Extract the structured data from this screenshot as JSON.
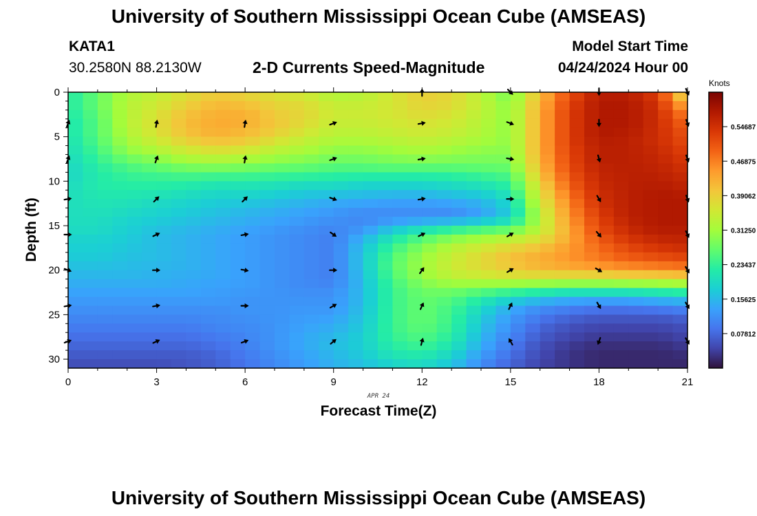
{
  "header": {
    "title": "University of Southern Mississippi Ocean Cube (AMSEAS)",
    "station_name": "KATA1",
    "station_coords": "30.2580N  88.2130W",
    "subtitle": "2-D Currents Speed-Magnitude",
    "model_start_label": "Model Start Time",
    "model_start_value": "04/24/2024 Hour 00"
  },
  "footer": {
    "title": "University of Southern Mississippi Ocean Cube (AMSEAS)"
  },
  "chart_data": {
    "type": "heatmap",
    "title": "2-D Currents Speed-Magnitude",
    "xlabel": "Forecast Time(Z)",
    "ylabel": "Depth (ft)",
    "x_note": "APR 24",
    "xlim": [
      0,
      21
    ],
    "ylim": [
      31,
      0
    ],
    "xticks": [
      0,
      3,
      6,
      9,
      12,
      15,
      18,
      21
    ],
    "yticks": [
      0,
      5,
      10,
      15,
      20,
      25,
      30
    ],
    "colorbar": {
      "units": "Knots",
      "range": [
        0.0,
        0.625
      ],
      "ticks": [
        "0.07812",
        "0.15625",
        "0.23437",
        "0.31250",
        "0.39062",
        "0.46875",
        "0.54687"
      ],
      "tick_values": [
        0.07812,
        0.15625,
        0.23437,
        0.3125,
        0.39062,
        0.46875,
        0.54687
      ],
      "colormap": [
        "#30123b",
        "#4145ab",
        "#4675ed",
        "#39a2fc",
        "#1bcfd4",
        "#24eca6",
        "#61fc6c",
        "#a4fc3b",
        "#d1e834",
        "#f3c63a",
        "#fe9b2d",
        "#f36315",
        "#d93806",
        "#b11901",
        "#7a0402"
      ]
    },
    "hours": [
      0,
      1,
      2,
      3,
      4,
      5,
      6,
      7,
      8,
      9,
      10,
      11,
      12,
      13,
      14,
      15,
      16,
      17,
      18,
      19,
      20,
      21
    ],
    "depths": [
      0,
      1,
      2,
      3,
      4,
      5,
      6,
      7,
      8,
      9,
      10,
      11,
      12,
      13,
      14,
      15,
      16,
      17,
      18,
      19,
      20,
      21,
      22,
      23,
      24,
      25,
      26,
      27,
      28,
      29,
      30,
      31
    ],
    "speed_knots": [
      [
        0.22,
        0.27,
        0.32,
        0.34,
        0.37,
        0.39,
        0.38,
        0.36,
        0.35,
        0.32,
        0.33,
        0.36,
        0.39,
        0.38,
        0.33,
        0.28,
        0.41,
        0.51,
        0.57,
        0.57,
        0.53,
        0.34
      ],
      [
        0.22,
        0.27,
        0.33,
        0.35,
        0.38,
        0.41,
        0.4,
        0.38,
        0.37,
        0.34,
        0.34,
        0.36,
        0.39,
        0.38,
        0.34,
        0.29,
        0.42,
        0.52,
        0.58,
        0.58,
        0.54,
        0.4
      ],
      [
        0.22,
        0.27,
        0.33,
        0.36,
        0.4,
        0.42,
        0.42,
        0.39,
        0.38,
        0.35,
        0.35,
        0.36,
        0.38,
        0.37,
        0.34,
        0.3,
        0.43,
        0.53,
        0.58,
        0.58,
        0.55,
        0.45
      ],
      [
        0.21,
        0.26,
        0.33,
        0.37,
        0.41,
        0.43,
        0.43,
        0.4,
        0.38,
        0.35,
        0.35,
        0.36,
        0.37,
        0.36,
        0.33,
        0.3,
        0.43,
        0.53,
        0.58,
        0.58,
        0.55,
        0.48
      ],
      [
        0.21,
        0.26,
        0.33,
        0.37,
        0.41,
        0.43,
        0.42,
        0.4,
        0.37,
        0.34,
        0.34,
        0.35,
        0.36,
        0.35,
        0.33,
        0.3,
        0.43,
        0.53,
        0.58,
        0.58,
        0.55,
        0.5
      ],
      [
        0.21,
        0.26,
        0.32,
        0.36,
        0.4,
        0.42,
        0.41,
        0.38,
        0.35,
        0.33,
        0.33,
        0.34,
        0.35,
        0.34,
        0.32,
        0.3,
        0.43,
        0.53,
        0.58,
        0.57,
        0.55,
        0.51
      ],
      [
        0.2,
        0.25,
        0.31,
        0.34,
        0.37,
        0.39,
        0.38,
        0.35,
        0.33,
        0.31,
        0.31,
        0.32,
        0.33,
        0.32,
        0.31,
        0.3,
        0.43,
        0.53,
        0.57,
        0.57,
        0.55,
        0.52
      ],
      [
        0.2,
        0.24,
        0.29,
        0.31,
        0.34,
        0.35,
        0.34,
        0.32,
        0.31,
        0.29,
        0.29,
        0.3,
        0.31,
        0.3,
        0.29,
        0.29,
        0.43,
        0.52,
        0.57,
        0.57,
        0.56,
        0.53
      ],
      [
        0.19,
        0.23,
        0.26,
        0.28,
        0.3,
        0.31,
        0.3,
        0.29,
        0.28,
        0.27,
        0.27,
        0.28,
        0.28,
        0.28,
        0.28,
        0.28,
        0.42,
        0.52,
        0.57,
        0.57,
        0.56,
        0.54
      ],
      [
        0.19,
        0.22,
        0.24,
        0.25,
        0.26,
        0.26,
        0.26,
        0.25,
        0.25,
        0.24,
        0.24,
        0.24,
        0.24,
        0.24,
        0.25,
        0.26,
        0.41,
        0.51,
        0.56,
        0.57,
        0.57,
        0.55
      ],
      [
        0.19,
        0.22,
        0.23,
        0.23,
        0.23,
        0.22,
        0.22,
        0.22,
        0.21,
        0.21,
        0.2,
        0.2,
        0.2,
        0.21,
        0.22,
        0.24,
        0.39,
        0.5,
        0.56,
        0.57,
        0.57,
        0.56
      ],
      [
        0.2,
        0.22,
        0.22,
        0.22,
        0.21,
        0.2,
        0.2,
        0.19,
        0.18,
        0.18,
        0.17,
        0.17,
        0.17,
        0.18,
        0.19,
        0.22,
        0.37,
        0.49,
        0.55,
        0.57,
        0.58,
        0.57
      ],
      [
        0.2,
        0.21,
        0.21,
        0.2,
        0.19,
        0.18,
        0.18,
        0.17,
        0.16,
        0.15,
        0.15,
        0.14,
        0.14,
        0.15,
        0.16,
        0.2,
        0.36,
        0.47,
        0.55,
        0.57,
        0.58,
        0.58
      ],
      [
        0.2,
        0.21,
        0.2,
        0.19,
        0.18,
        0.17,
        0.16,
        0.15,
        0.14,
        0.13,
        0.12,
        0.12,
        0.12,
        0.12,
        0.14,
        0.18,
        0.34,
        0.46,
        0.54,
        0.57,
        0.58,
        0.58
      ],
      [
        0.2,
        0.2,
        0.19,
        0.18,
        0.17,
        0.16,
        0.15,
        0.14,
        0.13,
        0.12,
        0.11,
        0.11,
        0.11,
        0.11,
        0.13,
        0.18,
        0.33,
        0.45,
        0.53,
        0.57,
        0.58,
        0.58
      ],
      [
        0.2,
        0.2,
        0.18,
        0.17,
        0.16,
        0.15,
        0.14,
        0.13,
        0.12,
        0.11,
        0.11,
        0.15,
        0.18,
        0.2,
        0.22,
        0.24,
        0.33,
        0.44,
        0.52,
        0.56,
        0.58,
        0.58
      ],
      [
        0.19,
        0.19,
        0.18,
        0.16,
        0.15,
        0.14,
        0.13,
        0.12,
        0.11,
        0.1,
        0.14,
        0.2,
        0.24,
        0.27,
        0.29,
        0.31,
        0.35,
        0.43,
        0.51,
        0.55,
        0.57,
        0.57
      ],
      [
        0.18,
        0.18,
        0.17,
        0.16,
        0.15,
        0.14,
        0.13,
        0.12,
        0.11,
        0.1,
        0.16,
        0.23,
        0.28,
        0.32,
        0.34,
        0.36,
        0.39,
        0.44,
        0.49,
        0.53,
        0.55,
        0.56
      ],
      [
        0.18,
        0.18,
        0.17,
        0.16,
        0.15,
        0.14,
        0.13,
        0.12,
        0.11,
        0.1,
        0.17,
        0.25,
        0.3,
        0.34,
        0.37,
        0.4,
        0.42,
        0.45,
        0.48,
        0.51,
        0.53,
        0.54
      ],
      [
        0.17,
        0.17,
        0.16,
        0.16,
        0.15,
        0.14,
        0.13,
        0.12,
        0.11,
        0.1,
        0.17,
        0.26,
        0.31,
        0.35,
        0.38,
        0.41,
        0.43,
        0.45,
        0.47,
        0.49,
        0.5,
        0.51
      ],
      [
        0.16,
        0.16,
        0.16,
        0.15,
        0.15,
        0.14,
        0.13,
        0.12,
        0.11,
        0.1,
        0.17,
        0.26,
        0.31,
        0.35,
        0.37,
        0.39,
        0.41,
        0.42,
        0.43,
        0.44,
        0.45,
        0.46
      ],
      [
        0.15,
        0.15,
        0.15,
        0.15,
        0.14,
        0.14,
        0.13,
        0.12,
        0.11,
        0.1,
        0.16,
        0.25,
        0.3,
        0.33,
        0.34,
        0.35,
        0.35,
        0.35,
        0.35,
        0.36,
        0.36,
        0.37
      ],
      [
        0.14,
        0.14,
        0.14,
        0.14,
        0.14,
        0.13,
        0.13,
        0.12,
        0.11,
        0.11,
        0.16,
        0.24,
        0.28,
        0.29,
        0.28,
        0.27,
        0.26,
        0.25,
        0.25,
        0.25,
        0.26,
        0.27
      ],
      [
        0.13,
        0.13,
        0.13,
        0.13,
        0.13,
        0.13,
        0.12,
        0.12,
        0.12,
        0.12,
        0.16,
        0.24,
        0.27,
        0.26,
        0.23,
        0.2,
        0.18,
        0.16,
        0.16,
        0.16,
        0.17,
        0.18
      ],
      [
        0.12,
        0.12,
        0.12,
        0.12,
        0.12,
        0.12,
        0.12,
        0.12,
        0.12,
        0.12,
        0.16,
        0.24,
        0.27,
        0.25,
        0.2,
        0.15,
        0.12,
        0.11,
        0.1,
        0.1,
        0.11,
        0.12
      ],
      [
        0.11,
        0.11,
        0.11,
        0.11,
        0.11,
        0.11,
        0.12,
        0.12,
        0.13,
        0.13,
        0.17,
        0.24,
        0.27,
        0.24,
        0.18,
        0.13,
        0.1,
        0.08,
        0.07,
        0.07,
        0.07,
        0.08
      ],
      [
        0.1,
        0.1,
        0.1,
        0.1,
        0.1,
        0.11,
        0.11,
        0.12,
        0.13,
        0.14,
        0.17,
        0.24,
        0.27,
        0.24,
        0.17,
        0.12,
        0.08,
        0.06,
        0.05,
        0.05,
        0.05,
        0.06
      ],
      [
        0.09,
        0.09,
        0.09,
        0.09,
        0.09,
        0.1,
        0.11,
        0.12,
        0.14,
        0.15,
        0.18,
        0.24,
        0.26,
        0.23,
        0.16,
        0.11,
        0.07,
        0.05,
        0.04,
        0.04,
        0.04,
        0.05
      ],
      [
        0.08,
        0.08,
        0.08,
        0.08,
        0.08,
        0.09,
        0.1,
        0.12,
        0.14,
        0.16,
        0.18,
        0.23,
        0.25,
        0.22,
        0.15,
        0.1,
        0.06,
        0.04,
        0.03,
        0.03,
        0.03,
        0.04
      ],
      [
        0.07,
        0.07,
        0.07,
        0.07,
        0.07,
        0.08,
        0.1,
        0.12,
        0.14,
        0.16,
        0.18,
        0.22,
        0.23,
        0.2,
        0.14,
        0.09,
        0.05,
        0.03,
        0.02,
        0.02,
        0.02,
        0.03
      ],
      [
        0.06,
        0.06,
        0.06,
        0.06,
        0.06,
        0.07,
        0.09,
        0.11,
        0.13,
        0.15,
        0.17,
        0.2,
        0.21,
        0.18,
        0.12,
        0.08,
        0.05,
        0.03,
        0.02,
        0.02,
        0.02,
        0.02
      ],
      [
        0.05,
        0.05,
        0.05,
        0.05,
        0.06,
        0.07,
        0.09,
        0.11,
        0.13,
        0.15,
        0.16,
        0.18,
        0.19,
        0.16,
        0.11,
        0.07,
        0.04,
        0.03,
        0.02,
        0.02,
        0.02,
        0.02
      ]
    ],
    "vectors": {
      "hours": [
        0,
        3,
        6,
        9,
        12,
        15,
        18,
        21
      ],
      "depths": [
        3.5,
        7.5,
        12,
        16,
        20,
        24,
        28
      ],
      "top_depth": 0,
      "top_directions_deg": [
        null,
        null,
        null,
        null,
        0,
        135,
        180,
        155
      ],
      "directions_deg": [
        [
          20,
          10,
          10,
          70,
          80,
          110,
          180,
          160
        ],
        [
          20,
          20,
          10,
          70,
          80,
          100,
          165,
          160
        ],
        [
          80,
          45,
          45,
          110,
          80,
          90,
          150,
          160
        ],
        [
          90,
          65,
          80,
          125,
          65,
          60,
          140,
          155
        ],
        [
          110,
          90,
          100,
          90,
          35,
          60,
          120,
          150
        ],
        [
          80,
          80,
          90,
          60,
          25,
          25,
          150,
          150
        ],
        [
          70,
          65,
          70,
          50,
          15,
          330,
          200,
          150
        ]
      ]
    }
  }
}
